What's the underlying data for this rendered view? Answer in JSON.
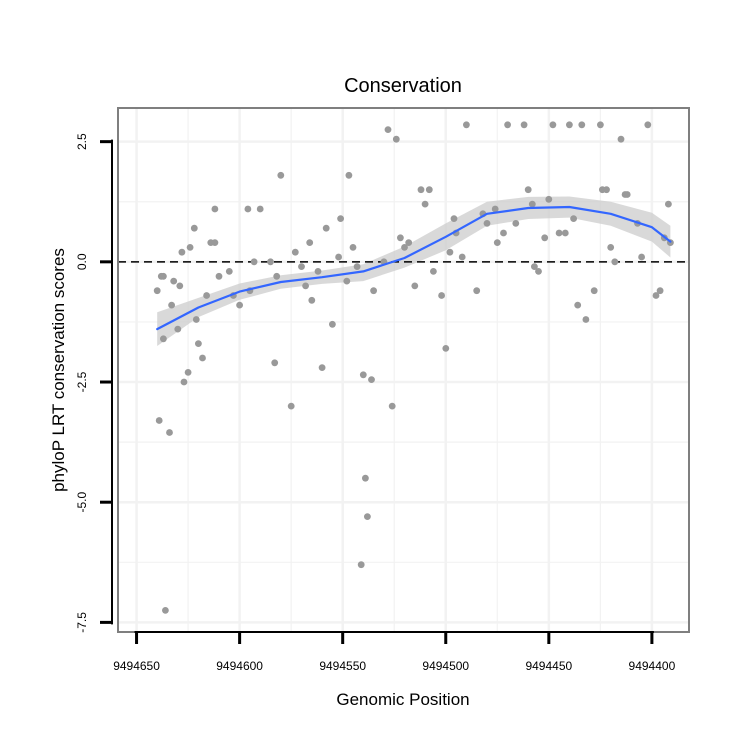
{
  "chart_data": {
    "type": "scatter",
    "title": "Conservation",
    "xlabel": "Genomic Position",
    "ylabel": "phyloP LRT conservation scores",
    "x_reversed": true,
    "xlim": [
      9494659,
      9494382
    ],
    "ylim": [
      -7.7,
      3.2
    ],
    "x_ticks": [
      9494650,
      9494600,
      9494550,
      9494500,
      9494450,
      9494400
    ],
    "x_tick_labels": [
      "9494650",
      "9494600",
      "9494550",
      "9494500",
      "9494450",
      "9494400"
    ],
    "y_ticks": [
      -7.5,
      -5.0,
      -2.5,
      0.0,
      2.5
    ],
    "y_tick_labels": [
      "-7.5",
      "-5.0",
      "-2.5",
      "0.0",
      "2.5"
    ],
    "reference_line": {
      "y": 0,
      "style": "dashed",
      "color": "#000000"
    },
    "colors": {
      "points": "#999999",
      "smooth_line": "#3366ff",
      "ribbon": "#cccccc",
      "panel_border": "#7f7f7f",
      "grid": "#f2f2f2"
    },
    "smooth_line": {
      "x": [
        9494640,
        9494620,
        9494600,
        9494580,
        9494560,
        9494540,
        9494520,
        9494500,
        9494480,
        9494460,
        9494440,
        9494420,
        9494400,
        9494391
      ],
      "y": [
        -1.4,
        -0.95,
        -0.62,
        -0.42,
        -0.32,
        -0.2,
        0.08,
        0.52,
        1.0,
        1.12,
        1.14,
        1.0,
        0.72,
        0.42
      ]
    },
    "ribbon_upper": [
      -1.05,
      -0.75,
      -0.45,
      -0.28,
      -0.18,
      -0.05,
      0.32,
      0.8,
      1.25,
      1.35,
      1.36,
      1.25,
      1.02,
      0.75
    ],
    "ribbon_lower": [
      -1.75,
      -1.15,
      -0.79,
      -0.56,
      -0.46,
      -0.4,
      -0.12,
      0.24,
      0.75,
      0.89,
      0.92,
      0.75,
      0.42,
      0.09
    ],
    "points": {
      "x": [
        9494640,
        9494639,
        9494637,
        9494636,
        9494634,
        9494632,
        9494630,
        9494629,
        9494627,
        9494625,
        9494622,
        9494620,
        9494618,
        9494616,
        9494612,
        9494610,
        9494605,
        9494600,
        9494595,
        9494590,
        9494585,
        9494583,
        9494575,
        9494570,
        9494565,
        9494562,
        9494558,
        9494555,
        9494548,
        9494545,
        9494541,
        9494539,
        9494538,
        9494536,
        9494530,
        9494526,
        9494522,
        9494520,
        9494515,
        9494510,
        9494506,
        9494500,
        9494498,
        9494495,
        9494490,
        9494485,
        9494480,
        9494475,
        9494470,
        9494466,
        9494460,
        9494455,
        9494452,
        9494448,
        9494445,
        9494440,
        9494436,
        9494432,
        9494428,
        9494425,
        9494420,
        9494418,
        9494415,
        9494412,
        9494405,
        9494398,
        9494394,
        9494392,
        9494391,
        9494637,
        9494633,
        9494628,
        9494621,
        9494614,
        9494603,
        9494593,
        9494580,
        9494573,
        9494568,
        9494560,
        9494551,
        9494547,
        9494543,
        9494535,
        9494528,
        9494518,
        9494508,
        9494502,
        9494492,
        9494482,
        9494472,
        9494462,
        9494457,
        9494450,
        9494442,
        9494434,
        9494424,
        9494413,
        9494402,
        9494638,
        9494624,
        9494612,
        9494596,
        9494582,
        9494566,
        9494552,
        9494540,
        9494524,
        9494512,
        9494496,
        9494476,
        9494458,
        9494438,
        9494422,
        9494407,
        9494396
      ],
      "y": [
        -0.6,
        -3.3,
        -1.6,
        -7.25,
        -3.55,
        -0.4,
        -1.4,
        -0.5,
        -2.5,
        -2.3,
        0.7,
        -1.7,
        -2.0,
        -0.7,
        1.1,
        -0.3,
        -0.2,
        -0.9,
        -0.6,
        1.1,
        0.0,
        -2.1,
        -3.0,
        -0.1,
        -0.8,
        -0.2,
        0.7,
        -1.3,
        -0.4,
        0.3,
        -6.3,
        -4.5,
        -5.3,
        -2.45,
        0.0,
        -3.0,
        0.5,
        0.3,
        -0.5,
        1.2,
        -0.2,
        -1.8,
        0.2,
        0.6,
        2.85,
        -0.6,
        0.8,
        0.4,
        2.85,
        0.8,
        1.5,
        -0.2,
        0.5,
        2.85,
        0.6,
        2.85,
        -0.9,
        -1.2,
        -0.6,
        2.85,
        0.3,
        0.0,
        2.55,
        1.4,
        0.1,
        -0.7,
        0.5,
        1.2,
        0.4,
        -0.3,
        -0.9,
        0.2,
        -1.2,
        0.4,
        -0.7,
        0.0,
        1.8,
        0.2,
        -0.5,
        -2.2,
        0.9,
        1.8,
        -0.1,
        -0.6,
        2.75,
        0.4,
        1.5,
        -0.7,
        0.1,
        1.0,
        0.6,
        2.85,
        -0.1,
        1.3,
        0.6,
        2.85,
        1.5,
        1.4,
        2.85,
        -0.3,
        0.3,
        0.4,
        1.1,
        -0.3,
        0.4,
        0.1,
        -2.35,
        2.55,
        1.5,
        0.9,
        1.1,
        1.2,
        0.9,
        1.5,
        0.8,
        -0.6
      ]
    }
  }
}
